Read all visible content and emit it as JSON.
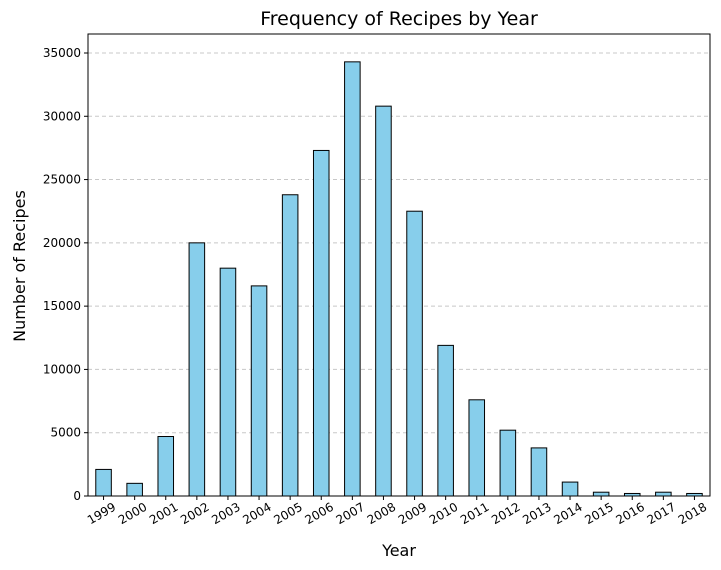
{
  "chart_data": {
    "type": "bar",
    "title": "Frequency of Recipes by Year",
    "xlabel": "Year",
    "ylabel": "Number of Recipes",
    "categories": [
      "1999",
      "2000",
      "2001",
      "2002",
      "2003",
      "2004",
      "2005",
      "2006",
      "2007",
      "2008",
      "2009",
      "2010",
      "2011",
      "2012",
      "2013",
      "2014",
      "2015",
      "2016",
      "2017",
      "2018"
    ],
    "values": [
      2100,
      1000,
      4700,
      20000,
      18000,
      16600,
      23800,
      27300,
      34300,
      30800,
      22500,
      11900,
      7600,
      5200,
      3800,
      1100,
      300,
      200,
      300,
      200
    ],
    "ylim": [
      0,
      36500
    ],
    "yticks": [
      0,
      5000,
      10000,
      15000,
      20000,
      25000,
      30000,
      35000
    ],
    "grid": "y-dashed",
    "bar_color": "#87ceeb",
    "edge_color": "#000000",
    "grid_color": "#c8c8c8"
  }
}
